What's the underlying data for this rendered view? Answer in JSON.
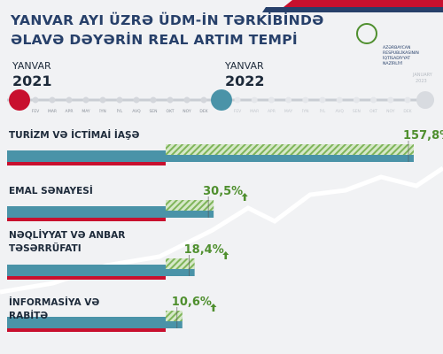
{
  "header": {
    "title_lines": [
      "YANVAR AYI ÜZRƏ ÜDM-İN TƏRKİBİNDƏ",
      "ƏLAVƏ DƏYƏRİN REAL ARTIM TEMPİ"
    ],
    "ministry_lines": [
      "AZƏRBAYCAN",
      "RESPUBLİKASININ",
      "İQTİSADİYYAT",
      "NAZİRLİYİ"
    ]
  },
  "timeline": {
    "start": {
      "label": "YANVAR",
      "year": "2021"
    },
    "mid": {
      "label": "YANVAR",
      "year": "2022"
    },
    "end": {
      "label": "JANUARY",
      "year": "2023"
    },
    "months": [
      "FEV",
      "MAR",
      "APR",
      "MAY",
      "İYN",
      "İYL",
      "AVQ",
      "SEN",
      "OKT",
      "NOY",
      "DEK"
    ]
  },
  "chart_data": {
    "type": "bar",
    "categories": [
      "TURİZM VƏ İCTİMAİ İAŞƏ",
      "EMAL SƏNAYESİ",
      "NƏQLİYYAT VƏ ANBAR TƏSƏRRÜFATI",
      "İNFORMASİYA VƏ RABİTƏ"
    ],
    "values": [
      157.8,
      30.5,
      18.4,
      10.6
    ],
    "value_labels": [
      "157,8%",
      "30,5%",
      "18,4%",
      "10,6%"
    ],
    "color": "#4a93a8"
  }
}
